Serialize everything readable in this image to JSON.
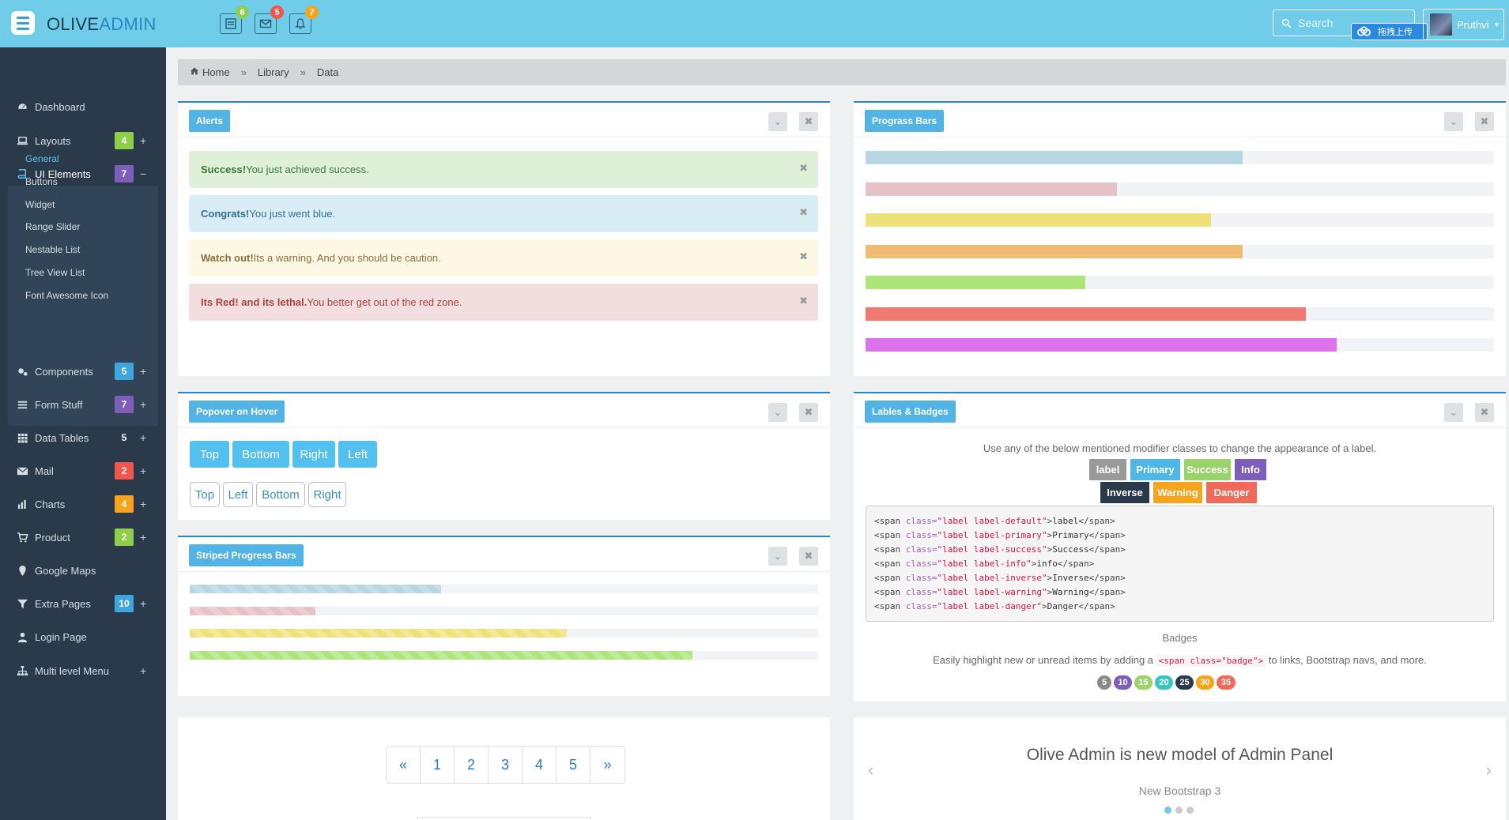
{
  "topbar": {
    "brand_part1": "OLIVE",
    "brand_part2": "ADMIN",
    "search_placeholder": "Search",
    "upload_label": "拖拽上传",
    "user_name": "Pruthvi",
    "notif_counts": [
      "6",
      "5",
      "7"
    ],
    "notif_colors": [
      "#8fcf4e",
      "#f0564b",
      "#f7a31c"
    ]
  },
  "sidebar": {
    "items": [
      {
        "label": "Dashboard",
        "icon": "dashboard-icon"
      },
      {
        "label": "Layouts",
        "icon": "laptop-icon",
        "count": "4",
        "color": "#8ecf49",
        "toggle": "+"
      },
      {
        "label": "UI Elements",
        "icon": "book-icon",
        "count": "7",
        "color": "#7d5fbb",
        "toggle": "−"
      },
      {
        "label": "Components",
        "icon": "cogs-icon",
        "count": "5",
        "color": "#3fa5df",
        "toggle": "+"
      },
      {
        "label": "Form Stuff",
        "icon": "list-icon",
        "count": "7",
        "color": "#7d5fbb",
        "toggle": "+"
      },
      {
        "label": "Data Tables",
        "icon": "table-icon",
        "count": "5",
        "color": "#2b3a4a",
        "toggle": "+"
      },
      {
        "label": "Mail",
        "icon": "envelope-icon",
        "count": "2",
        "color": "#f0564b",
        "toggle": "+"
      },
      {
        "label": "Charts",
        "icon": "bar-chart-icon",
        "count": "4",
        "color": "#f7a31c",
        "toggle": "+"
      },
      {
        "label": "Product",
        "icon": "cart-icon",
        "count": "2",
        "color": "#8ecf49",
        "toggle": "+"
      },
      {
        "label": "Google Maps",
        "icon": "map-marker-icon"
      },
      {
        "label": "Extra Pages",
        "icon": "filter-icon",
        "count": "10",
        "color": "#3fa5df",
        "toggle": "+"
      },
      {
        "label": "Login Page",
        "icon": "user-icon"
      },
      {
        "label": "Multi level Menu",
        "icon": "sitemap-icon",
        "toggle": "+"
      }
    ],
    "submenu": [
      "General",
      "Buttons",
      "Widget",
      "Range Slider",
      "Nestable List",
      "Tree View List",
      "Font Awesome Icon"
    ]
  },
  "breadcrumb": [
    "Home",
    "Library",
    "Data"
  ],
  "alerts_panel": {
    "title": "Alerts",
    "alerts": [
      {
        "strong": "Success!",
        "text": " You just achieved success.",
        "bg": "#dff0d8",
        "color": "#3c763d"
      },
      {
        "strong": "Congrats!",
        "text": " You just went blue.",
        "bg": "#d9edf7",
        "color": "#31708f"
      },
      {
        "strong": "Watch out!",
        "text": " Its a warning. And you should be caution.",
        "bg": "#fcf8e3",
        "color": "#8a6d3b"
      },
      {
        "strong": "Its Red! and its lethal.",
        "text": " You better get out of the red zone.",
        "bg": "#f2dede",
        "color": "#a94442"
      }
    ]
  },
  "progress_panel": {
    "title": "Prograss Bars",
    "bars": [
      {
        "value": 60,
        "color": "#b5d6e2"
      },
      {
        "value": 40,
        "color": "#e7c1c8"
      },
      {
        "value": 55,
        "color": "#efe17a"
      },
      {
        "value": 60,
        "color": "#f0bb72"
      },
      {
        "value": 35,
        "color": "#ace578"
      },
      {
        "value": 70,
        "color": "#f07a6f"
      },
      {
        "value": 75,
        "color": "#dd72ec"
      }
    ]
  },
  "popover_panel": {
    "title": "Popover on Hover",
    "solid_buttons": [
      "Top",
      "Bottom",
      "Right",
      "Left"
    ],
    "outline_buttons": [
      "Top",
      "Left",
      "Bottom",
      "Right"
    ]
  },
  "labels_panel": {
    "title": "Lables & Badges",
    "intro": "Use any of the below mentioned modifier classes to change the appearance of a label.",
    "labels_row1": [
      {
        "text": "label",
        "color": "#999999"
      },
      {
        "text": "Primary",
        "color": "#4fb6e8"
      },
      {
        "text": "Success",
        "color": "#9ad36a"
      },
      {
        "text": "Info",
        "color": "#7d5fbb"
      }
    ],
    "labels_row2": [
      {
        "text": "Inverse",
        "color": "#2b3a4a"
      },
      {
        "text": "Warning",
        "color": "#f7a31c"
      },
      {
        "text": "Danger",
        "color": "#f06a5b"
      }
    ],
    "code_lines": [
      {
        "cls": "\"label label-default\"",
        "content": "label"
      },
      {
        "cls": "\"label label-primary\"",
        "content": "Primary"
      },
      {
        "cls": "\"label label-success\"",
        "content": "Success"
      },
      {
        "cls": "\"label label-info\"",
        "content": "info"
      },
      {
        "cls": "\"label label-inverse\"",
        "content": "Inverse"
      },
      {
        "cls": "\"label label-warning\"",
        "content": "Warning"
      },
      {
        "cls": "\"label label-danger\"",
        "content": "Danger"
      }
    ],
    "badges_heading": "Badges",
    "badges_text_before": "Easily highlight new or unread items by adding a ",
    "badges_code": "<span class=\"badge\">",
    "badges_text_after": " to links, Bootstrap navs, and more.",
    "badges": [
      {
        "text": "5",
        "color": "#8a8a8a"
      },
      {
        "text": "10",
        "color": "#7d5fbb"
      },
      {
        "text": "15",
        "color": "#9ad36a"
      },
      {
        "text": "20",
        "color": "#3cc5c0"
      },
      {
        "text": "25",
        "color": "#2b3a4a"
      },
      {
        "text": "30",
        "color": "#f7a31c"
      },
      {
        "text": "35",
        "color": "#f06a5b"
      }
    ]
  },
  "striped_panel": {
    "title": "Striped Progress Bars",
    "bars": [
      {
        "value": 40,
        "color": "#b5d6e2"
      },
      {
        "value": 20,
        "color": "#e7c1c8"
      },
      {
        "value": 60,
        "color": "#efe17a"
      },
      {
        "value": 80,
        "color": "#ace578"
      }
    ]
  },
  "pagination": [
    "«",
    "1",
    "2",
    "3",
    "4",
    "5",
    "»"
  ],
  "carousel": {
    "headline": "Olive Admin is new model of Admin Panel",
    "subtext": "New Bootstrap 3",
    "prev": "‹",
    "next": "›"
  }
}
